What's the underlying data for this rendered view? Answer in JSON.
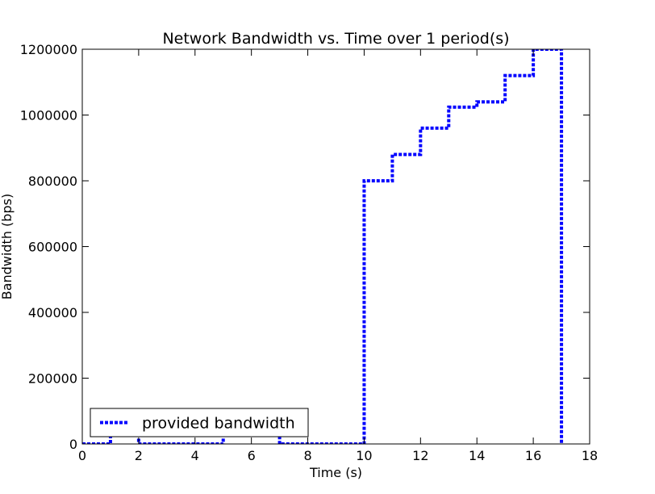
{
  "chart_data": {
    "type": "line",
    "title": "Network Bandwidth vs. Time over 1 period(s)",
    "xlabel": "Time (s)",
    "ylabel": "Bandwidth (bps)",
    "xlim": [
      0,
      18
    ],
    "ylim": [
      0,
      1200000
    ],
    "xticks": [
      0,
      2,
      4,
      6,
      8,
      10,
      12,
      14,
      16,
      18
    ],
    "yticks": [
      0,
      200000,
      400000,
      600000,
      800000,
      1000000,
      1200000
    ],
    "xtick_labels": [
      "0",
      "2",
      "4",
      "6",
      "8",
      "10",
      "12",
      "14",
      "16",
      "18"
    ],
    "ytick_labels": [
      "0",
      "200000",
      "400000",
      "600000",
      "800000",
      "1000000",
      "1200000"
    ],
    "grid": false,
    "legend_position": "lower-left",
    "series": [
      {
        "name": "provided bandwidth",
        "color": "#0000ff",
        "style": "dotted",
        "x": [
          0,
          1,
          1,
          2,
          2,
          5,
          5,
          7,
          7,
          10,
          10,
          11,
          11,
          12,
          12,
          13,
          13,
          14,
          14,
          15,
          15,
          16,
          16,
          17,
          17
        ],
        "y": [
          0,
          0,
          40000,
          40000,
          0,
          0,
          40000,
          40000,
          0,
          0,
          800000,
          800000,
          880000,
          880000,
          960000,
          960000,
          1024000,
          1024000,
          1040000,
          1040000,
          1120000,
          1120000,
          1200000,
          1200000,
          0
        ]
      }
    ]
  }
}
